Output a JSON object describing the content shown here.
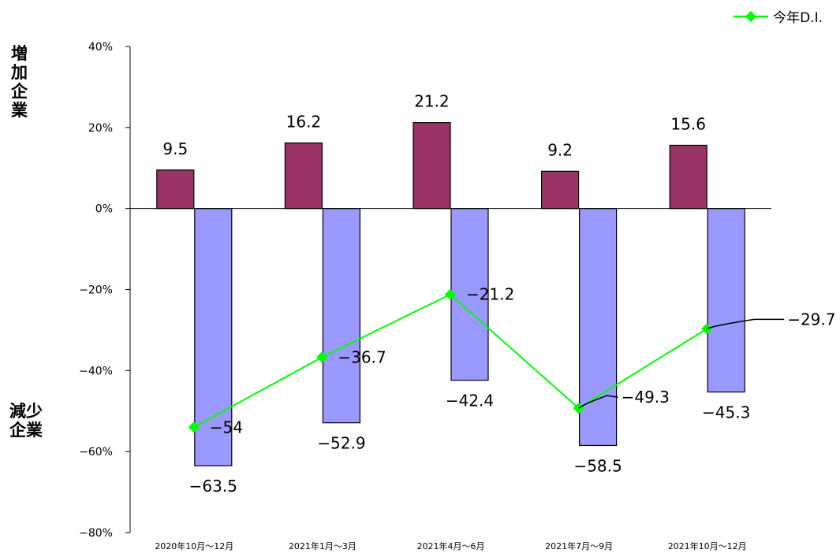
{
  "chart_data": {
    "type": "bar",
    "categories": [
      "2020年10月～12月",
      "2021年1月～3月",
      "2021年4月～6月",
      "2021年7月～9月",
      "2021年10月～12月"
    ],
    "series": [
      {
        "kind": "bar",
        "values": [
          9.5,
          16.2,
          21.2,
          9.2,
          15.6
        ],
        "color": "#993366"
      },
      {
        "kind": "bar",
        "values": [
          -63.5,
          -52.9,
          -42.4,
          -58.5,
          -45.3
        ],
        "color": "#9999ff"
      },
      {
        "name": "今年D.I.",
        "kind": "line",
        "values": [
          -54,
          -36.7,
          -21.2,
          -49.3,
          -29.7
        ],
        "color": "#00ff00"
      }
    ],
    "ylim": [
      -80,
      40
    ],
    "yticks": [
      40,
      20,
      0,
      -20,
      -40,
      -60,
      -80
    ],
    "ytick_labels": [
      "40%",
      "20%",
      "0%",
      "−20%",
      "−40%",
      "−60%",
      "−80%"
    ],
    "value_labels": {
      "increase": [
        "9.5",
        "16.2",
        "21.2",
        "9.2",
        "15.6"
      ],
      "decrease": [
        "−63.5",
        "−52.9",
        "−42.4",
        "−58.5",
        "−45.3"
      ],
      "di": [
        "−54",
        "−36.7",
        "−21.2",
        "−49.3",
        "−29.7"
      ]
    },
    "legend": {
      "position": "top-right",
      "label": "今年D.I."
    },
    "side_labels": {
      "top": "増加企業",
      "bottom": "減少企業"
    },
    "grid": false
  }
}
